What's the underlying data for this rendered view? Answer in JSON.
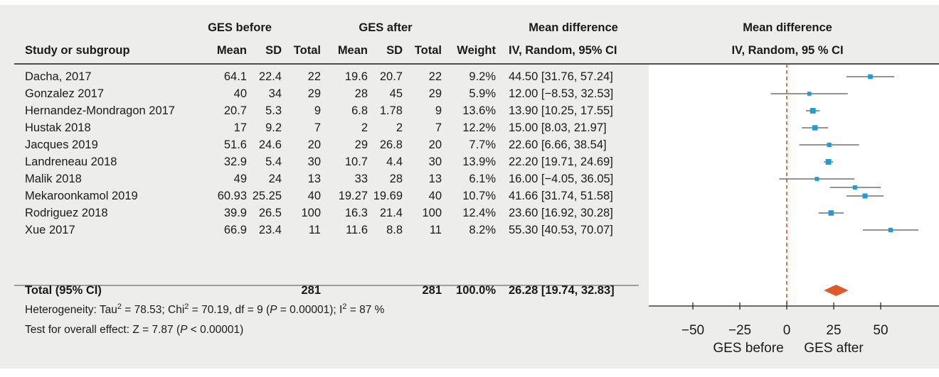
{
  "colors": {
    "panel_bg": "#ededec",
    "plot_bg": "#ffffff",
    "marker": "#1f9bd7",
    "diamond": "#e0592a",
    "zero_line": "#d9531e",
    "line": "#1a1a1a",
    "ci_line": "#555555"
  },
  "header": {
    "group_before": "GES before",
    "group_after": "GES after",
    "study": "Study or subgroup",
    "mean": "Mean",
    "sd": "SD",
    "total": "Total",
    "weight": "Weight",
    "md_title": "Mean difference",
    "md_method": "IV, Random, 95% CI",
    "plot_title": "Mean difference",
    "plot_method": "IV, Random, 95 % CI"
  },
  "chart_data": {
    "type": "forest",
    "xlim": [
      -70,
      70
    ],
    "xticks": [
      -50,
      -25,
      0,
      25,
      50
    ],
    "xtick_labels": [
      "−50",
      "−25",
      "0",
      "25",
      "50"
    ],
    "x_left_label": "GES before",
    "x_right_label": "GES after",
    "reference_line": 0,
    "studies": [
      {
        "name": "Dacha, 2017",
        "before_mean": "64.1",
        "before_sd": "22.4",
        "before_total": "22",
        "after_mean": "19.6",
        "after_sd": "20.7",
        "after_total": "22",
        "weight": "9.2%",
        "ci_text": "44.50 [31.76, 57.24]",
        "md": 44.5,
        "lo": 31.76,
        "hi": 57.24
      },
      {
        "name": "Gonzalez 2017",
        "before_mean": "40",
        "before_sd": "34",
        "before_total": "29",
        "after_mean": "28",
        "after_sd": "45",
        "after_total": "29",
        "weight": "5.9%",
        "ci_text": "12.00 [−8.53, 32.53]",
        "md": 12.0,
        "lo": -8.53,
        "hi": 32.53
      },
      {
        "name": "Hernandez-Mondragon 2017",
        "before_mean": "20.7",
        "before_sd": "5.3",
        "before_total": "9",
        "after_mean": "6.8",
        "after_sd": "1.78",
        "after_total": "9",
        "weight": "13.6%",
        "ci_text": "13.90 [10.25, 17.55]",
        "md": 13.9,
        "lo": 10.25,
        "hi": 17.55
      },
      {
        "name": "Hustak 2018",
        "before_mean": "17",
        "before_sd": "9.2",
        "before_total": "7",
        "after_mean": "2",
        "after_sd": "2",
        "after_total": "7",
        "weight": "12.2%",
        "ci_text": "15.00 [8.03, 21.97]",
        "md": 15.0,
        "lo": 8.03,
        "hi": 21.97
      },
      {
        "name": "Jacques 2019",
        "before_mean": "51.6",
        "before_sd": "24.6",
        "before_total": "20",
        "after_mean": "29",
        "after_sd": "26.8",
        "after_total": "20",
        "weight": "7.7%",
        "ci_text": "22.60 [6.66, 38.54]",
        "md": 22.6,
        "lo": 6.66,
        "hi": 38.54
      },
      {
        "name": "Landreneau 2018",
        "before_mean": "32.9",
        "before_sd": "5.4",
        "before_total": "30",
        "after_mean": "10.7",
        "after_sd": "4.4",
        "after_total": "30",
        "weight": "13.9%",
        "ci_text": "22.20 [19.71, 24.69]",
        "md": 22.2,
        "lo": 19.71,
        "hi": 24.69
      },
      {
        "name": "Malik 2018",
        "before_mean": "49",
        "before_sd": "24",
        "before_total": "13",
        "after_mean": "33",
        "after_sd": "28",
        "after_total": "13",
        "weight": "6.1%",
        "ci_text": "16.00 [−4.05, 36.05]",
        "md": 16.0,
        "lo": -4.05,
        "hi": 36.05
      },
      {
        "name": "Mekaroonkamol 2019",
        "before_mean": "60.93",
        "before_sd": "25.25",
        "before_total": "40",
        "after_mean": "19.27",
        "after_sd": "19.69",
        "after_total": "40",
        "weight": "10.7%",
        "ci_text": "41.66 [31.74, 51.58]",
        "md": 41.66,
        "lo": 31.74,
        "hi": 51.58
      },
      {
        "name": "Rodriguez 2018",
        "before_mean": "39.9",
        "before_sd": "26.5",
        "before_total": "100",
        "after_mean": "16.3",
        "after_sd": "21.4",
        "after_total": "100",
        "weight": "12.4%",
        "ci_text": "23.60 [16.92, 30.28]",
        "md": 23.6,
        "lo": 16.92,
        "hi": 30.28
      },
      {
        "name": "Xue 2017",
        "before_mean": "66.9",
        "before_sd": "23.4",
        "before_total": "11",
        "after_mean": "11.6",
        "after_sd": "8.8",
        "after_total": "11",
        "weight": "8.2%",
        "ci_text": "55.30 [40.53, 70.07]",
        "md": 55.3,
        "lo": 40.53,
        "hi": 70.07
      }
    ],
    "extra_segment": {
      "md": 36.3,
      "lo": 23.0,
      "hi": 50.0
    },
    "total": {
      "label": "Total (95% CI)",
      "before_total": "281",
      "after_total": "281",
      "weight": "100.0%",
      "ci_text": "26.28 [19.74, 32.83]",
      "md": 26.28,
      "lo": 19.74,
      "hi": 32.83
    },
    "heterogeneity": {
      "prefix": "Heterogeneity: Tau",
      "tau_value": " = 78.53; Chi",
      "chi_value": " = 70.19, df = 9 (",
      "p_letter": "P",
      "p_value": " = 0.00001); I",
      "i2_value": " = 87 %",
      "sup": "2"
    },
    "overall_effect": {
      "prefix": "Test for overall effect: Z = 7.87 (",
      "p_letter": "P",
      "p_value": " < 0.00001)"
    }
  }
}
